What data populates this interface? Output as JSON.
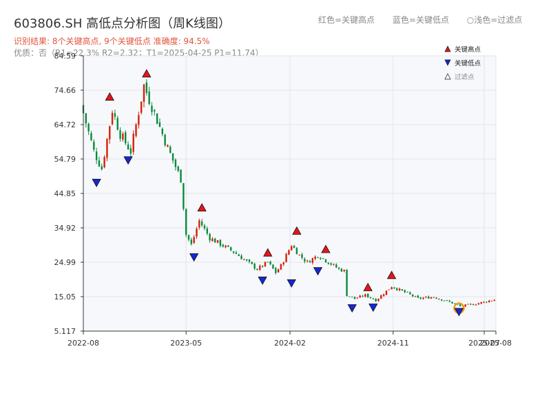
{
  "header": {
    "title": "603806.SH 高低点分析图（周K线图）",
    "legend_red": "红色=关键高点",
    "legend_blue": "蓝色=关键低点",
    "legend_light": "○浅色=过滤点",
    "summary": "识别结果: 8个关键高点, 9个关键低点   准确度: 94.5%",
    "quality": "优质：否（R1=22.3%  R2=2.32；T1=2025-04-25 P1=11.74）"
  },
  "colors": {
    "up": "#d81e06",
    "down": "#0a8a3a",
    "high_marker": "#e8141b",
    "low_marker": "#1428d8",
    "highlight": "#f29b11",
    "plot_bg": "#f6f8fb",
    "grid": "#e1e5ea",
    "axis": "#333333"
  },
  "chart_data": {
    "type": "candlestick",
    "title": "603806.SH 高低点分析图（周K线图）",
    "ylim": [
      5.117,
      84.59
    ],
    "y_ticks": [
      "5.117",
      "15.05",
      "24.99",
      "34.92",
      "44.85",
      "54.79",
      "64.72",
      "74.66",
      "84.59"
    ],
    "x_ticks": [
      "2022-08",
      "2023-05",
      "2024-02",
      "2024-11",
      "2025-07",
      "2025-08"
    ],
    "x_tick_dates": [
      "2022-08-01",
      "2023-05-01",
      "2024-02-01",
      "2024-11-01",
      "2025-07-01",
      "2025-08-01"
    ],
    "x_range": [
      "2022-08-01",
      "2025-08-01"
    ],
    "gap": [
      "2024-06-24",
      "2024-07-01"
    ],
    "legend": [
      {
        "label": "关键高点",
        "kind": "high"
      },
      {
        "label": "关键低点",
        "kind": "low"
      },
      {
        "label": "过滤点",
        "kind": "filtered"
      }
    ],
    "anchors": [
      {
        "date": "2022-08-01",
        "close": 68
      },
      {
        "date": "2022-08-29",
        "close": 57
      },
      {
        "date": "2022-09-19",
        "close": 52
      },
      {
        "date": "2022-10-17",
        "close": 69
      },
      {
        "date": "2022-11-07",
        "close": 62
      },
      {
        "date": "2022-12-05",
        "close": 57
      },
      {
        "date": "2023-01-09",
        "close": 76
      },
      {
        "date": "2023-02-13",
        "close": 66
      },
      {
        "date": "2023-03-13",
        "close": 58
      },
      {
        "date": "2023-04-17",
        "close": 49
      },
      {
        "date": "2023-05-01",
        "close": 33
      },
      {
        "date": "2023-05-15",
        "close": 30
      },
      {
        "date": "2023-06-05",
        "close": 37
      },
      {
        "date": "2023-07-03",
        "close": 32
      },
      {
        "date": "2023-09-04",
        "close": 28
      },
      {
        "date": "2023-11-06",
        "close": 23
      },
      {
        "date": "2023-12-04",
        "close": 25
      },
      {
        "date": "2023-12-25",
        "close": 22
      },
      {
        "date": "2024-01-08",
        "close": 24
      },
      {
        "date": "2024-02-05",
        "close": 30
      },
      {
        "date": "2024-02-26",
        "close": 27
      },
      {
        "date": "2024-03-18",
        "close": 25
      },
      {
        "date": "2024-04-15",
        "close": 27
      },
      {
        "date": "2024-06-10",
        "close": 23
      },
      {
        "date": "2024-06-24",
        "close": 22.5
      },
      {
        "date": "2024-07-01",
        "close": 15.5
      },
      {
        "date": "2024-07-22",
        "close": 14.5
      },
      {
        "date": "2024-08-19",
        "close": 15.5
      },
      {
        "date": "2024-09-16",
        "close": 14
      },
      {
        "date": "2024-10-28",
        "close": 18
      },
      {
        "date": "2024-12-09",
        "close": 16
      },
      {
        "date": "2025-01-06",
        "close": 14.5
      },
      {
        "date": "2025-02-17",
        "close": 15
      },
      {
        "date": "2025-04-14",
        "close": 13
      },
      {
        "date": "2025-04-28",
        "close": 12.3
      },
      {
        "date": "2025-06-09",
        "close": 13
      },
      {
        "date": "2025-08-01",
        "close": 14.3
      }
    ],
    "key_highs": [
      {
        "date": "2022-10-10",
        "price": 71.5
      },
      {
        "date": "2023-01-16",
        "price": 78.2
      },
      {
        "date": "2023-06-12",
        "price": 39.5
      },
      {
        "date": "2023-12-04",
        "price": 26.5
      },
      {
        "date": "2024-02-19",
        "price": 32.8
      },
      {
        "date": "2024-05-06",
        "price": 27.5
      },
      {
        "date": "2024-08-26",
        "price": 16.5
      },
      {
        "date": "2024-10-28",
        "price": 20.0
      }
    ],
    "key_lows": [
      {
        "date": "2022-09-05",
        "price": 49.0
      },
      {
        "date": "2022-11-28",
        "price": 55.5
      },
      {
        "date": "2023-05-22",
        "price": 27.5
      },
      {
        "date": "2023-11-20",
        "price": 20.8
      },
      {
        "date": "2024-02-05",
        "price": 20.0
      },
      {
        "date": "2024-04-15",
        "price": 23.5
      },
      {
        "date": "2024-07-15",
        "price": 12.8
      },
      {
        "date": "2024-09-09",
        "price": 13.0
      },
      {
        "date": "2025-04-25",
        "price": 11.74
      }
    ],
    "highlight": {
      "date": "2025-04-25",
      "price": 11.74
    }
  }
}
